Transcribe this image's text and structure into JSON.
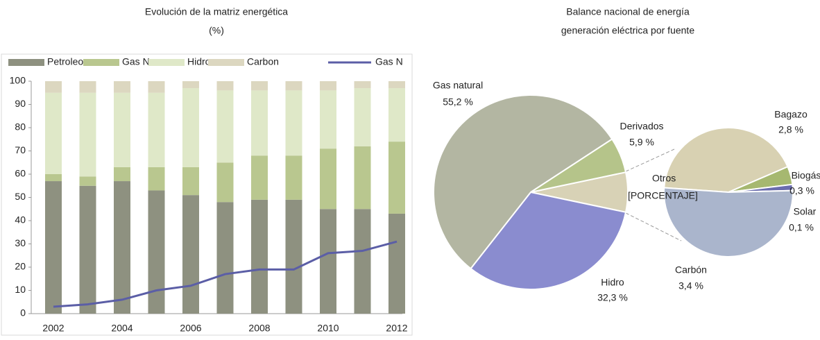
{
  "chart_data": [
    {
      "type": "bar",
      "stacked": true,
      "title": "Evolución de la matriz energética",
      "subtitle": "(%)",
      "categories": [
        "2002",
        null,
        "2004",
        null,
        "2006",
        null,
        "2008",
        null,
        "2010",
        null,
        "2012"
      ],
      "series": [
        {
          "name": "Petroleo",
          "color": "#8e9180",
          "values": [
            57,
            55,
            57,
            53,
            51,
            48,
            49,
            49,
            45,
            45,
            43
          ]
        },
        {
          "name": "Gas N",
          "color": "#b9c78f",
          "values": [
            3,
            4,
            6,
            10,
            12,
            17,
            19,
            19,
            26,
            27,
            31
          ]
        },
        {
          "name": "Hidro",
          "color": "#dfe8c8",
          "values": [
            35,
            36,
            32,
            32,
            34,
            31,
            28,
            28,
            25,
            25,
            23
          ]
        },
        {
          "name": "Carbon",
          "color": "#dcd7c0",
          "values": [
            5,
            5,
            5,
            5,
            3,
            4,
            4,
            4,
            4,
            3,
            3
          ]
        },
        {
          "name": "Gas N",
          "color": "#5b5ea6",
          "type": "line",
          "values": [
            3,
            4,
            6,
            10,
            12,
            17,
            19,
            19,
            26,
            27,
            31
          ]
        }
      ],
      "ylim": [
        0,
        100
      ],
      "yticks": [
        0,
        10,
        20,
        30,
        40,
        50,
        60,
        70,
        80,
        90,
        100
      ],
      "legend": "top"
    },
    {
      "type": "pie",
      "title": "Balance nacional de energía",
      "subtitle": "generación eléctrica por fuente",
      "categories": [
        "Otros",
        "Hidro",
        "Gas natural",
        "Derivados"
      ],
      "values": [
        6.6,
        32.3,
        55.2,
        5.9
      ],
      "value_labels": [
        "[PORCENTAJE]",
        "32,3 %",
        "55,2 %",
        "5,9 %"
      ],
      "colors": [
        "#d8d2b6",
        "#8a8ccf",
        "#b3b6a2",
        "#b5c48a"
      ],
      "secondary": {
        "categories": [
          "Bagazo",
          "Biogás",
          "Solar",
          "Carbón"
        ],
        "values": [
          2.8,
          0.3,
          0.1,
          3.4
        ],
        "value_labels": [
          "2,8 %",
          "0,3 %",
          "0,1 %",
          "3,4 %"
        ],
        "colors": [
          "#d8d1b2",
          "#a6b870",
          "#6a6cae",
          "#aab5cc"
        ]
      }
    }
  ]
}
